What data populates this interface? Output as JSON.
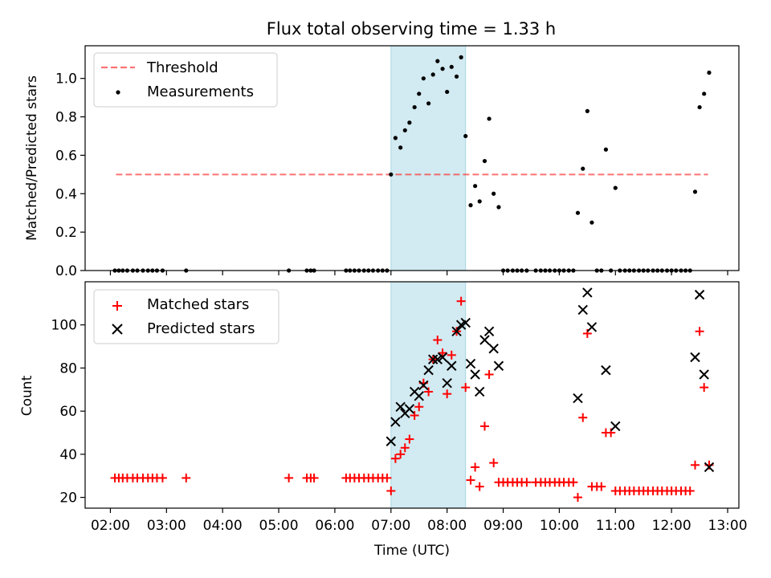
{
  "figure_title": "Flux total observing time = 1.33 h",
  "chart_data": [
    {
      "type": "scatter",
      "panel": "top",
      "title": "Flux total observing time = 1.33 h",
      "xlabel": "",
      "ylabel": "Matched/Predicted stars",
      "xlim": [
        1.55,
        13.2
      ],
      "ylim": [
        0,
        1.17
      ],
      "yticks": [
        0.0,
        0.2,
        0.4,
        0.6,
        0.8,
        1.0
      ],
      "ytick_labels": [
        "0.0",
        "0.2",
        "0.4",
        "0.6",
        "0.8",
        "1.0"
      ],
      "shaded_region": {
        "x_start": 7.0,
        "x_end": 8.33,
        "color": "#add8e6"
      },
      "legend_position": "upper left",
      "series": [
        {
          "name": "Threshold",
          "kind": "line",
          "style": "dashed",
          "color": "#ff0000",
          "x": [
            2.1,
            12.65
          ],
          "y": [
            0.5,
            0.5
          ]
        },
        {
          "name": "Measurements",
          "kind": "dots",
          "color": "#000000",
          "points": [
            [
              2.08,
              0
            ],
            [
              2.15,
              0
            ],
            [
              2.22,
              0
            ],
            [
              2.3,
              0
            ],
            [
              2.4,
              0
            ],
            [
              2.48,
              0
            ],
            [
              2.58,
              0
            ],
            [
              2.67,
              0
            ],
            [
              2.75,
              0
            ],
            [
              2.83,
              0
            ],
            [
              2.93,
              0
            ],
            [
              3.35,
              0
            ],
            [
              5.18,
              0
            ],
            [
              5.5,
              0
            ],
            [
              5.57,
              0
            ],
            [
              5.63,
              0
            ],
            [
              6.2,
              0
            ],
            [
              6.27,
              0
            ],
            [
              6.35,
              0
            ],
            [
              6.43,
              0
            ],
            [
              6.52,
              0
            ],
            [
              6.6,
              0
            ],
            [
              6.68,
              0
            ],
            [
              6.77,
              0
            ],
            [
              6.85,
              0
            ],
            [
              6.93,
              0
            ],
            [
              7.0,
              0.5
            ],
            [
              7.08,
              0.69
            ],
            [
              7.17,
              0.64
            ],
            [
              7.25,
              0.73
            ],
            [
              7.33,
              0.77
            ],
            [
              7.42,
              0.85
            ],
            [
              7.5,
              0.92
            ],
            [
              7.58,
              1.0
            ],
            [
              7.67,
              0.87
            ],
            [
              7.75,
              1.02
            ],
            [
              7.83,
              1.09
            ],
            [
              7.92,
              1.05
            ],
            [
              8.0,
              0.93
            ],
            [
              8.08,
              1.06
            ],
            [
              8.17,
              1.01
            ],
            [
              8.25,
              1.11
            ],
            [
              8.33,
              0.7
            ],
            [
              8.42,
              0.34
            ],
            [
              8.5,
              0.44
            ],
            [
              8.58,
              0.36
            ],
            [
              8.67,
              0.57
            ],
            [
              8.75,
              0.79
            ],
            [
              8.83,
              0.4
            ],
            [
              8.92,
              0.33
            ],
            [
              9.0,
              0
            ],
            [
              9.08,
              0
            ],
            [
              9.17,
              0
            ],
            [
              9.25,
              0
            ],
            [
              9.33,
              0
            ],
            [
              9.42,
              0
            ],
            [
              9.58,
              0
            ],
            [
              9.67,
              0
            ],
            [
              9.75,
              0
            ],
            [
              9.83,
              0
            ],
            [
              9.92,
              0
            ],
            [
              10.0,
              0
            ],
            [
              10.08,
              0
            ],
            [
              10.17,
              0
            ],
            [
              10.25,
              0
            ],
            [
              10.33,
              0.3
            ],
            [
              10.42,
              0.53
            ],
            [
              10.5,
              0.83
            ],
            [
              10.58,
              0.25
            ],
            [
              10.67,
              0
            ],
            [
              10.75,
              0
            ],
            [
              10.83,
              0.63
            ],
            [
              10.92,
              0
            ],
            [
              11.0,
              0.43
            ],
            [
              11.08,
              0
            ],
            [
              11.17,
              0
            ],
            [
              11.25,
              0
            ],
            [
              11.33,
              0
            ],
            [
              11.42,
              0
            ],
            [
              11.5,
              0
            ],
            [
              11.58,
              0
            ],
            [
              11.67,
              0
            ],
            [
              11.75,
              0
            ],
            [
              11.83,
              0
            ],
            [
              11.92,
              0
            ],
            [
              12.0,
              0
            ],
            [
              12.08,
              0
            ],
            [
              12.17,
              0
            ],
            [
              12.25,
              0
            ],
            [
              12.33,
              0
            ],
            [
              12.42,
              0.41
            ],
            [
              12.5,
              0.85
            ],
            [
              12.58,
              0.92
            ],
            [
              12.67,
              1.03
            ]
          ]
        }
      ]
    },
    {
      "type": "scatter",
      "panel": "bottom",
      "title": "",
      "xlabel": "Time (UTC)",
      "ylabel": "Count",
      "xlim": [
        1.55,
        13.2
      ],
      "ylim": [
        15,
        120
      ],
      "yticks": [
        20,
        40,
        60,
        80,
        100
      ],
      "ytick_labels": [
        "20",
        "40",
        "60",
        "80",
        "100"
      ],
      "xticks": [
        2,
        3,
        4,
        5,
        6,
        7,
        8,
        9,
        10,
        11,
        12,
        13
      ],
      "xtick_labels": [
        "02:00",
        "03:00",
        "04:00",
        "05:00",
        "06:00",
        "07:00",
        "08:00",
        "09:00",
        "10:00",
        "11:00",
        "12:00",
        "13:00"
      ],
      "shaded_region": {
        "x_start": 7.0,
        "x_end": 8.33,
        "color": "#add8e6"
      },
      "legend_position": "upper left",
      "series": [
        {
          "name": "Matched stars",
          "marker": "plus",
          "color": "#ff0000",
          "points": [
            [
              2.08,
              29
            ],
            [
              2.15,
              29
            ],
            [
              2.22,
              29
            ],
            [
              2.3,
              29
            ],
            [
              2.4,
              29
            ],
            [
              2.48,
              29
            ],
            [
              2.58,
              29
            ],
            [
              2.67,
              29
            ],
            [
              2.75,
              29
            ],
            [
              2.83,
              29
            ],
            [
              2.93,
              29
            ],
            [
              3.35,
              29
            ],
            [
              5.18,
              29
            ],
            [
              5.5,
              29
            ],
            [
              5.57,
              29
            ],
            [
              5.63,
              29
            ],
            [
              6.2,
              29
            ],
            [
              6.27,
              29
            ],
            [
              6.35,
              29
            ],
            [
              6.43,
              29
            ],
            [
              6.52,
              29
            ],
            [
              6.6,
              29
            ],
            [
              6.68,
              29
            ],
            [
              6.77,
              29
            ],
            [
              6.85,
              29
            ],
            [
              6.93,
              29
            ],
            [
              7.0,
              23
            ],
            [
              7.08,
              38
            ],
            [
              7.17,
              40
            ],
            [
              7.25,
              43
            ],
            [
              7.33,
              47
            ],
            [
              7.42,
              58
            ],
            [
              7.5,
              62
            ],
            [
              7.58,
              73
            ],
            [
              7.67,
              69
            ],
            [
              7.75,
              84
            ],
            [
              7.83,
              93
            ],
            [
              7.92,
              87
            ],
            [
              8.0,
              68
            ],
            [
              8.08,
              86
            ],
            [
              8.17,
              97
            ],
            [
              8.25,
              111
            ],
            [
              8.33,
              71
            ],
            [
              8.42,
              28
            ],
            [
              8.5,
              34
            ],
            [
              8.58,
              25
            ],
            [
              8.67,
              53
            ],
            [
              8.75,
              77
            ],
            [
              8.83,
              36
            ],
            [
              8.92,
              27
            ],
            [
              9.0,
              27
            ],
            [
              9.08,
              27
            ],
            [
              9.17,
              27
            ],
            [
              9.25,
              27
            ],
            [
              9.33,
              27
            ],
            [
              9.42,
              27
            ],
            [
              9.58,
              27
            ],
            [
              9.67,
              27
            ],
            [
              9.75,
              27
            ],
            [
              9.83,
              27
            ],
            [
              9.92,
              27
            ],
            [
              10.0,
              27
            ],
            [
              10.08,
              27
            ],
            [
              10.17,
              27
            ],
            [
              10.25,
              27
            ],
            [
              10.33,
              20
            ],
            [
              10.42,
              57
            ],
            [
              10.5,
              96
            ],
            [
              10.58,
              25
            ],
            [
              10.67,
              25
            ],
            [
              10.75,
              25
            ],
            [
              10.83,
              50
            ],
            [
              10.92,
              50
            ],
            [
              11.0,
              23
            ],
            [
              11.08,
              23
            ],
            [
              11.17,
              23
            ],
            [
              11.25,
              23
            ],
            [
              11.33,
              23
            ],
            [
              11.42,
              23
            ],
            [
              11.5,
              23
            ],
            [
              11.58,
              23
            ],
            [
              11.67,
              23
            ],
            [
              11.75,
              23
            ],
            [
              11.83,
              23
            ],
            [
              11.92,
              23
            ],
            [
              12.0,
              23
            ],
            [
              12.08,
              23
            ],
            [
              12.17,
              23
            ],
            [
              12.25,
              23
            ],
            [
              12.33,
              23
            ],
            [
              12.42,
              35
            ],
            [
              12.5,
              97
            ],
            [
              12.58,
              71
            ],
            [
              12.67,
              35
            ]
          ]
        },
        {
          "name": "Predicted stars",
          "marker": "x",
          "color": "#000000",
          "points": [
            [
              7.0,
              46
            ],
            [
              7.08,
              55
            ],
            [
              7.17,
              62
            ],
            [
              7.25,
              59
            ],
            [
              7.33,
              61
            ],
            [
              7.42,
              69
            ],
            [
              7.5,
              67
            ],
            [
              7.58,
              72
            ],
            [
              7.67,
              79
            ],
            [
              7.75,
              84
            ],
            [
              7.83,
              84
            ],
            [
              7.92,
              85
            ],
            [
              8.0,
              73
            ],
            [
              8.08,
              81
            ],
            [
              8.17,
              97
            ],
            [
              8.25,
              100
            ],
            [
              8.33,
              101
            ],
            [
              8.42,
              82
            ],
            [
              8.5,
              77
            ],
            [
              8.58,
              69
            ],
            [
              8.67,
              93
            ],
            [
              8.75,
              97
            ],
            [
              8.83,
              89
            ],
            [
              8.92,
              81
            ],
            [
              10.33,
              66
            ],
            [
              10.42,
              107
            ],
            [
              10.5,
              115
            ],
            [
              10.58,
              99
            ],
            [
              10.83,
              79
            ],
            [
              11.0,
              53
            ],
            [
              12.42,
              85
            ],
            [
              12.5,
              114
            ],
            [
              12.58,
              77
            ],
            [
              12.67,
              34
            ]
          ]
        }
      ]
    }
  ]
}
